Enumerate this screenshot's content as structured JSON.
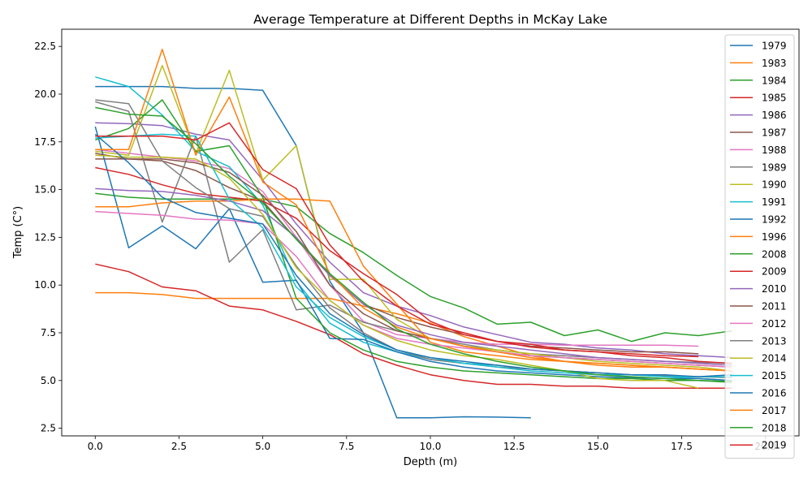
{
  "chart_data": {
    "type": "line",
    "title": "Average Temperature at Different Depths in McKay Lake",
    "xlabel": "Depth (m)",
    "ylabel": "Temp (C°)",
    "xlim": [
      -1.0,
      21.0
    ],
    "ylim": [
      2.1,
      23.4
    ],
    "xticks": [
      0.0,
      2.5,
      5.0,
      7.5,
      10.0,
      12.5,
      15.0,
      17.5,
      20.0
    ],
    "xtick_labels": [
      "0.0",
      "2.5",
      "5.0",
      "7.5",
      "10.0",
      "12.5",
      "15.0",
      "17.5",
      "20.0"
    ],
    "yticks": [
      2.5,
      5.0,
      7.5,
      10.0,
      12.5,
      15.0,
      17.5,
      20.0,
      22.5
    ],
    "ytick_labels": [
      "2.5",
      "5.0",
      "7.5",
      "10.0",
      "12.5",
      "15.0",
      "17.5",
      "20.0",
      "22.5"
    ],
    "grid": false,
    "legend_position": "right, overlapping plot",
    "x": [
      0,
      1,
      2,
      3,
      4,
      5,
      6,
      7,
      8,
      9,
      10,
      11,
      12,
      13,
      14,
      15,
      16,
      17,
      18,
      19
    ],
    "series": [
      {
        "name": "1979",
        "color": "#1f77b4",
        "values": [
          20.4,
          20.4,
          20.4,
          20.3,
          20.3,
          20.2,
          17.3,
          10.2,
          7.5,
          3.05,
          3.05,
          3.1,
          3.08,
          3.05,
          null,
          null,
          null,
          null,
          null,
          null
        ]
      },
      {
        "name": "1983",
        "color": "#ff7f0e",
        "values": [
          9.6,
          9.6,
          9.5,
          9.3,
          9.3,
          9.3,
          9.3,
          9.3,
          8.9,
          8.5,
          8.0,
          7.3,
          6.8,
          6.3,
          6.0,
          5.8,
          5.7,
          5.7,
          5.6,
          5.5
        ]
      },
      {
        "name": "1984",
        "color": "#2ca02c",
        "values": [
          14.8,
          14.6,
          14.5,
          14.5,
          14.5,
          14.5,
          14.1,
          12.7,
          11.7,
          10.5,
          9.4,
          8.8,
          7.95,
          8.05,
          7.35,
          7.65,
          7.05,
          7.5,
          7.35,
          7.6
        ]
      },
      {
        "name": "1985",
        "color": "#d62728",
        "values": [
          11.1,
          10.7,
          9.9,
          9.7,
          8.9,
          8.7,
          8.1,
          7.4,
          6.4,
          5.8,
          5.3,
          5.0,
          4.8,
          4.8,
          4.7,
          4.7,
          4.6,
          4.6,
          4.6,
          4.6
        ]
      },
      {
        "name": "1986",
        "color": "#9467bd",
        "values": [
          18.5,
          18.45,
          18.35,
          17.9,
          17.6,
          15.5,
          13.2,
          11.2,
          9.6,
          8.9,
          8.4,
          7.8,
          7.4,
          7.0,
          6.9,
          6.7,
          6.6,
          6.4,
          6.3,
          6.2
        ]
      },
      {
        "name": "1987",
        "color": "#8c564b",
        "values": [
          16.6,
          16.6,
          16.5,
          16.0,
          15.1,
          14.4,
          12.4,
          10.5,
          9.0,
          8.3,
          7.8,
          7.4,
          7.05,
          6.8,
          6.7,
          6.6,
          6.5,
          6.5,
          6.4,
          null
        ]
      },
      {
        "name": "1988",
        "color": "#e377c2",
        "values": [
          17.1,
          16.9,
          16.7,
          16.5,
          16.1,
          14.9,
          12.5,
          10.0,
          8.1,
          7.4,
          7.2,
          7.0,
          6.9,
          6.9,
          6.85,
          6.85,
          6.85,
          6.85,
          6.8,
          null
        ]
      },
      {
        "name": "1989",
        "color": "#7f7f7f",
        "values": [
          19.6,
          19.1,
          13.3,
          17.8,
          11.2,
          12.9,
          8.7,
          8.95,
          8.05,
          7.6,
          7.2,
          6.9,
          6.6,
          6.4,
          6.3,
          6.2,
          6.1,
          6.0,
          5.95,
          5.9
        ]
      },
      {
        "name": "1990",
        "color": "#bcbd22",
        "values": [
          17.0,
          16.8,
          21.5,
          16.9,
          21.25,
          15.5,
          17.3,
          10.3,
          10.3,
          8.2,
          7.2,
          6.8,
          6.6,
          6.4,
          6.2,
          6.0,
          5.9,
          5.8,
          5.7,
          5.5
        ]
      },
      {
        "name": "1991",
        "color": "#17becf",
        "values": [
          20.9,
          20.4,
          18.9,
          17.0,
          16.2,
          14.2,
          10.2,
          8.0,
          7.0,
          6.5,
          6.1,
          5.9,
          5.8,
          5.6,
          5.5,
          5.4,
          5.3,
          5.2,
          5.1,
          5.0
        ]
      },
      {
        "name": "1992",
        "color": "#1f77b4",
        "values": [
          18.3,
          11.95,
          13.1,
          11.9,
          14.0,
          10.15,
          10.25,
          7.2,
          7.15,
          6.5,
          6.0,
          5.7,
          5.5,
          5.4,
          5.3,
          5.2,
          5.15,
          5.1,
          5.1,
          5.0
        ]
      },
      {
        "name": "1996",
        "color": "#ff7f0e",
        "values": [
          14.1,
          14.1,
          14.3,
          14.4,
          14.4,
          14.5,
          14.5,
          14.4,
          11.0,
          9.0,
          7.0,
          6.5,
          6.3,
          6.1,
          6.0,
          5.9,
          5.8,
          5.7,
          5.6,
          5.5
        ]
      },
      {
        "name": "2008",
        "color": "#2ca02c",
        "values": [
          17.6,
          18.2,
          19.7,
          17.0,
          17.3,
          14.6,
          9.3,
          7.5,
          6.6,
          6.0,
          5.7,
          5.5,
          5.4,
          5.3,
          5.2,
          5.1,
          5.1,
          5.0,
          5.0,
          4.95
        ]
      },
      {
        "name": "2009",
        "color": "#d62728",
        "values": [
          16.15,
          15.8,
          15.25,
          14.8,
          14.6,
          14.4,
          13.5,
          11.8,
          10.6,
          9.5,
          8.1,
          7.4,
          7.05,
          6.75,
          6.6,
          6.5,
          6.4,
          6.3,
          6.25,
          null
        ]
      },
      {
        "name": "2010",
        "color": "#9467bd",
        "values": [
          15.05,
          14.95,
          14.9,
          14.7,
          14.4,
          13.9,
          12.5,
          10.5,
          9.0,
          7.9,
          7.4,
          7.0,
          6.8,
          6.6,
          6.4,
          6.2,
          6.1,
          6.0,
          5.9,
          5.8
        ]
      },
      {
        "name": "2011",
        "color": "#8c564b",
        "values": [
          16.9,
          16.6,
          16.6,
          16.4,
          15.9,
          14.7,
          12.8,
          10.0,
          8.5,
          7.6,
          7.2,
          6.8,
          6.5,
          6.3,
          6.2,
          6.1,
          6.0,
          5.9,
          5.8,
          5.7
        ]
      },
      {
        "name": "2012",
        "color": "#e377c2",
        "values": [
          13.85,
          13.75,
          13.65,
          13.45,
          13.4,
          13.2,
          11.5,
          9.2,
          7.9,
          7.2,
          6.9,
          6.7,
          6.5,
          6.3,
          6.2,
          6.1,
          6.0,
          5.9,
          5.8,
          5.7
        ]
      },
      {
        "name": "2013",
        "color": "#7f7f7f",
        "values": [
          19.7,
          19.5,
          16.5,
          15.1,
          14.0,
          13.6,
          11.0,
          8.8,
          7.5,
          6.6,
          6.1,
          5.9,
          5.7,
          5.6,
          5.5,
          5.4,
          5.3,
          5.25,
          5.2,
          5.15
        ]
      },
      {
        "name": "2014",
        "color": "#bcbd22",
        "values": [
          16.8,
          16.7,
          16.7,
          16.6,
          15.6,
          13.7,
          10.9,
          9.2,
          7.9,
          7.1,
          6.6,
          6.3,
          6.1,
          5.8,
          5.5,
          5.1,
          5.0,
          5.0,
          4.6,
          null
        ]
      },
      {
        "name": "2015",
        "color": "#17becf",
        "values": [
          17.7,
          17.8,
          17.9,
          17.8,
          14.5,
          13.0,
          9.9,
          8.3,
          7.3,
          6.6,
          6.2,
          5.9,
          5.7,
          5.5,
          5.4,
          5.3,
          5.3,
          5.2,
          5.2,
          5.2
        ]
      },
      {
        "name": "2016",
        "color": "#1f77b4",
        "values": [
          17.9,
          16.4,
          14.6,
          13.8,
          13.5,
          13.2,
          10.5,
          8.5,
          7.4,
          6.6,
          6.2,
          6.0,
          5.8,
          5.6,
          5.5,
          5.4,
          5.3,
          5.3,
          5.2,
          5.3
        ]
      },
      {
        "name": "2017",
        "color": "#ff7f0e",
        "values": [
          17.1,
          17.1,
          22.35,
          16.8,
          19.85,
          15.4,
          14.2,
          10.6,
          8.8,
          7.8,
          7.2,
          6.8,
          6.5,
          6.2,
          6.0,
          5.9,
          5.8,
          5.7,
          5.6,
          5.5
        ]
      },
      {
        "name": "2018",
        "color": "#2ca02c",
        "values": [
          19.3,
          18.95,
          18.85,
          17.4,
          15.7,
          14.3,
          12.4,
          10.6,
          9.1,
          7.7,
          6.9,
          6.4,
          6.0,
          5.7,
          5.5,
          5.3,
          5.2,
          5.1,
          5.0,
          4.9
        ]
      },
      {
        "name": "2019",
        "color": "#d62728",
        "values": [
          17.8,
          17.8,
          17.8,
          17.6,
          18.5,
          16.05,
          15.05,
          12.1,
          10.2,
          8.9,
          7.95,
          7.5,
          7.05,
          6.9,
          6.6,
          6.5,
          6.3,
          6.2,
          6.0,
          5.9
        ]
      }
    ]
  }
}
